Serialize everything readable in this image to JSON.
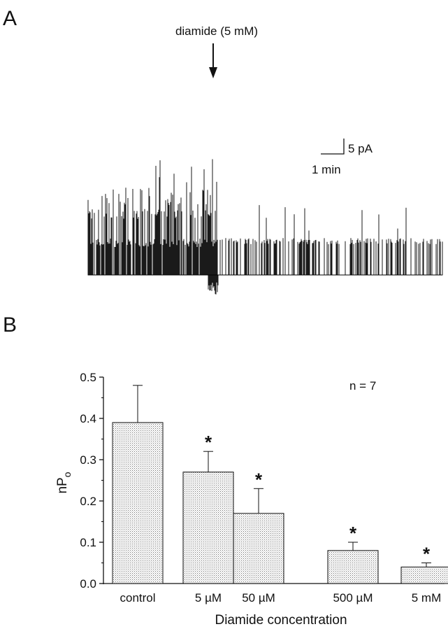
{
  "panel_a": {
    "label": "A",
    "annotation": "diamide (5 mM)",
    "scale_current": "5 pA",
    "scale_time": "1 min"
  },
  "panel_b": {
    "label": "B",
    "n_label": "n = 7"
  },
  "chart_data": [
    {
      "type": "line",
      "panel": "A",
      "description_units": "current trace (pA) vs time (min)",
      "annotations": [
        {
          "text": "diamide (5 mM)"
        }
      ],
      "scale_bar": {
        "current": "5 pA",
        "time": "1 min"
      }
    },
    {
      "type": "bar",
      "panel": "B",
      "categories": [
        "control",
        "5 µM",
        "50 µM",
        "500 µM",
        "5 mM"
      ],
      "values": [
        0.39,
        0.27,
        0.17,
        0.08,
        0.04
      ],
      "errors": [
        0.09,
        0.05,
        0.06,
        0.02,
        0.01
      ],
      "significant": [
        false,
        true,
        true,
        true,
        true
      ],
      "significance_marker": "*",
      "xlabel": "Diamide concentration",
      "ylabel": "nP",
      "ylabel_subscript": "o",
      "ylim": [
        0.0,
        0.5
      ],
      "yticks": [
        0.0,
        0.1,
        0.2,
        0.3,
        0.4,
        0.5
      ],
      "ytick_labels": [
        "0.0",
        "0.1",
        "0.2",
        "0.3",
        "0.4",
        "0.5"
      ],
      "annotation": "n = 7",
      "bar_fill": "#d6d6d6"
    }
  ]
}
